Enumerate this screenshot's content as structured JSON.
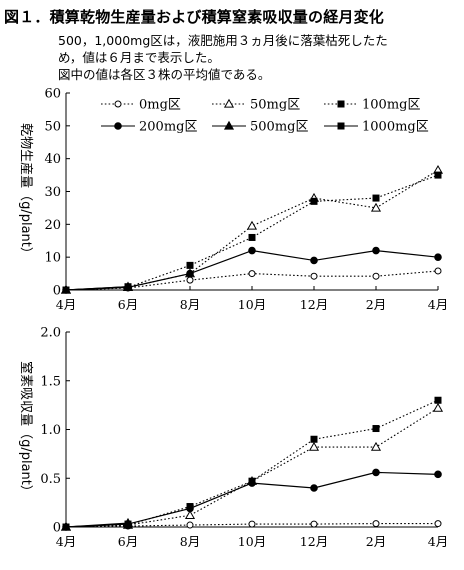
{
  "caption": {
    "title": "図１．積算乾物生産量および積算窒素吸収量の経月変化",
    "note_line1": "500，1,000mg区は，液肥施用３ヵ月後に落葉枯死したた",
    "note_line2": "め，値は６月まで表示した。",
    "note_line3": "図中の値は各区３株の平均値である。"
  },
  "colors": {
    "line": "#000000",
    "background": "#ffffff"
  },
  "chart_data": [
    {
      "type": "line",
      "title": "",
      "xlabel": "",
      "ylabel": "乾物生産量（g/plant）",
      "categories": [
        "4月",
        "6月",
        "8月",
        "10月",
        "12月",
        "2月",
        "4月"
      ],
      "x": [
        0,
        2,
        4,
        6,
        8,
        10,
        12
      ],
      "ylim": [
        0,
        60
      ],
      "yticks": [
        0,
        10,
        20,
        30,
        40,
        50,
        60
      ],
      "ytick_labels": [
        "0",
        "10",
        "20",
        "30",
        "40",
        "50",
        "60"
      ],
      "grid": false,
      "legend_position": "top",
      "series": [
        {
          "name": "0mg区",
          "marker": "open-circle",
          "dash": "dotted",
          "x": [
            0,
            2,
            4,
            6,
            8,
            10,
            12
          ],
          "values": [
            0,
            0.6,
            3.0,
            5.0,
            4.2,
            4.2,
            5.8
          ]
        },
        {
          "name": "50mg区",
          "marker": "open-triangle",
          "dash": "dotted",
          "x": [
            0,
            2,
            4,
            6,
            8,
            10,
            12
          ],
          "values": [
            0,
            0.8,
            5.0,
            19.5,
            28.0,
            25.0,
            36.5
          ]
        },
        {
          "name": "100mg区",
          "marker": "filled-square",
          "dash": "dotted",
          "x": [
            0,
            2,
            4,
            6,
            8,
            10,
            12
          ],
          "values": [
            0,
            0.8,
            7.5,
            16.0,
            27.0,
            28.0,
            35.0
          ]
        },
        {
          "name": "200mg区",
          "marker": "filled-circle",
          "dash": "solid",
          "x": [
            0,
            2,
            4,
            6,
            8,
            10,
            12
          ],
          "values": [
            0,
            0.8,
            5.0,
            12.0,
            9.0,
            12.0,
            10.0
          ]
        },
        {
          "name": "500mg区",
          "marker": "filled-triangle",
          "dash": "solid",
          "x": [
            0,
            2
          ],
          "values": [
            0,
            1.0
          ]
        },
        {
          "name": "1000mg区",
          "marker": "filled-square",
          "dash": "solid",
          "x": [
            0,
            2
          ],
          "values": [
            0,
            1.0
          ]
        }
      ]
    },
    {
      "type": "line",
      "title": "",
      "xlabel": "",
      "ylabel": "窒素吸収量（g/plant）",
      "categories": [
        "4月",
        "6月",
        "8月",
        "10月",
        "12月",
        "2月",
        "4月"
      ],
      "x": [
        0,
        2,
        4,
        6,
        8,
        10,
        12
      ],
      "ylim": [
        0,
        2.0
      ],
      "yticks": [
        0,
        0.5,
        1.0,
        1.5,
        2.0
      ],
      "ytick_labels": [
        "0",
        "0.5",
        "1.0",
        "1.5",
        "2.0"
      ],
      "grid": false,
      "series": [
        {
          "name": "0mg区",
          "marker": "open-circle",
          "dash": "dotted",
          "x": [
            0,
            2,
            4,
            6,
            8,
            10,
            12
          ],
          "values": [
            0,
            0.01,
            0.02,
            0.03,
            0.03,
            0.035,
            0.035
          ]
        },
        {
          "name": "50mg区",
          "marker": "open-triangle",
          "dash": "dotted",
          "x": [
            0,
            2,
            4,
            6,
            8,
            10,
            12
          ],
          "values": [
            0,
            0.02,
            0.12,
            0.47,
            0.82,
            0.82,
            1.22
          ]
        },
        {
          "name": "100mg区",
          "marker": "filled-square",
          "dash": "dotted",
          "x": [
            0,
            2,
            4,
            6,
            8,
            10,
            12
          ],
          "values": [
            0,
            0.02,
            0.21,
            0.47,
            0.9,
            1.01,
            1.3
          ]
        },
        {
          "name": "200mg区",
          "marker": "filled-circle",
          "dash": "solid",
          "x": [
            0,
            2,
            4,
            6,
            8,
            10,
            12
          ],
          "values": [
            0,
            0.03,
            0.19,
            0.45,
            0.4,
            0.56,
            0.54
          ]
        },
        {
          "name": "500mg区",
          "marker": "filled-triangle",
          "dash": "solid",
          "x": [
            0,
            2
          ],
          "values": [
            0,
            0.04
          ]
        },
        {
          "name": "1000mg区",
          "marker": "filled-square",
          "dash": "solid",
          "x": [
            0,
            2
          ],
          "values": [
            0,
            0.03
          ]
        }
      ]
    }
  ]
}
